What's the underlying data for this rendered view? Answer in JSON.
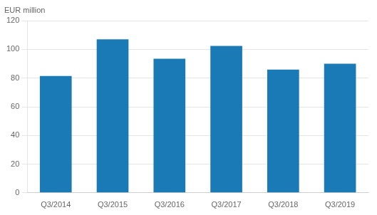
{
  "chart_data": {
    "type": "bar",
    "ylabel": "EUR million",
    "categories": [
      "Q3/2014",
      "Q3/2015",
      "Q3/2016",
      "Q3/2017",
      "Q3/2018",
      "Q3/2019"
    ],
    "values": [
      81.5,
      107.0,
      93.5,
      102.5,
      86.0,
      90.0
    ],
    "color": "#1a7ab5",
    "ylim": [
      0,
      120
    ],
    "yticks": [
      0,
      20,
      40,
      60,
      80,
      100,
      120
    ],
    "grid": true
  }
}
